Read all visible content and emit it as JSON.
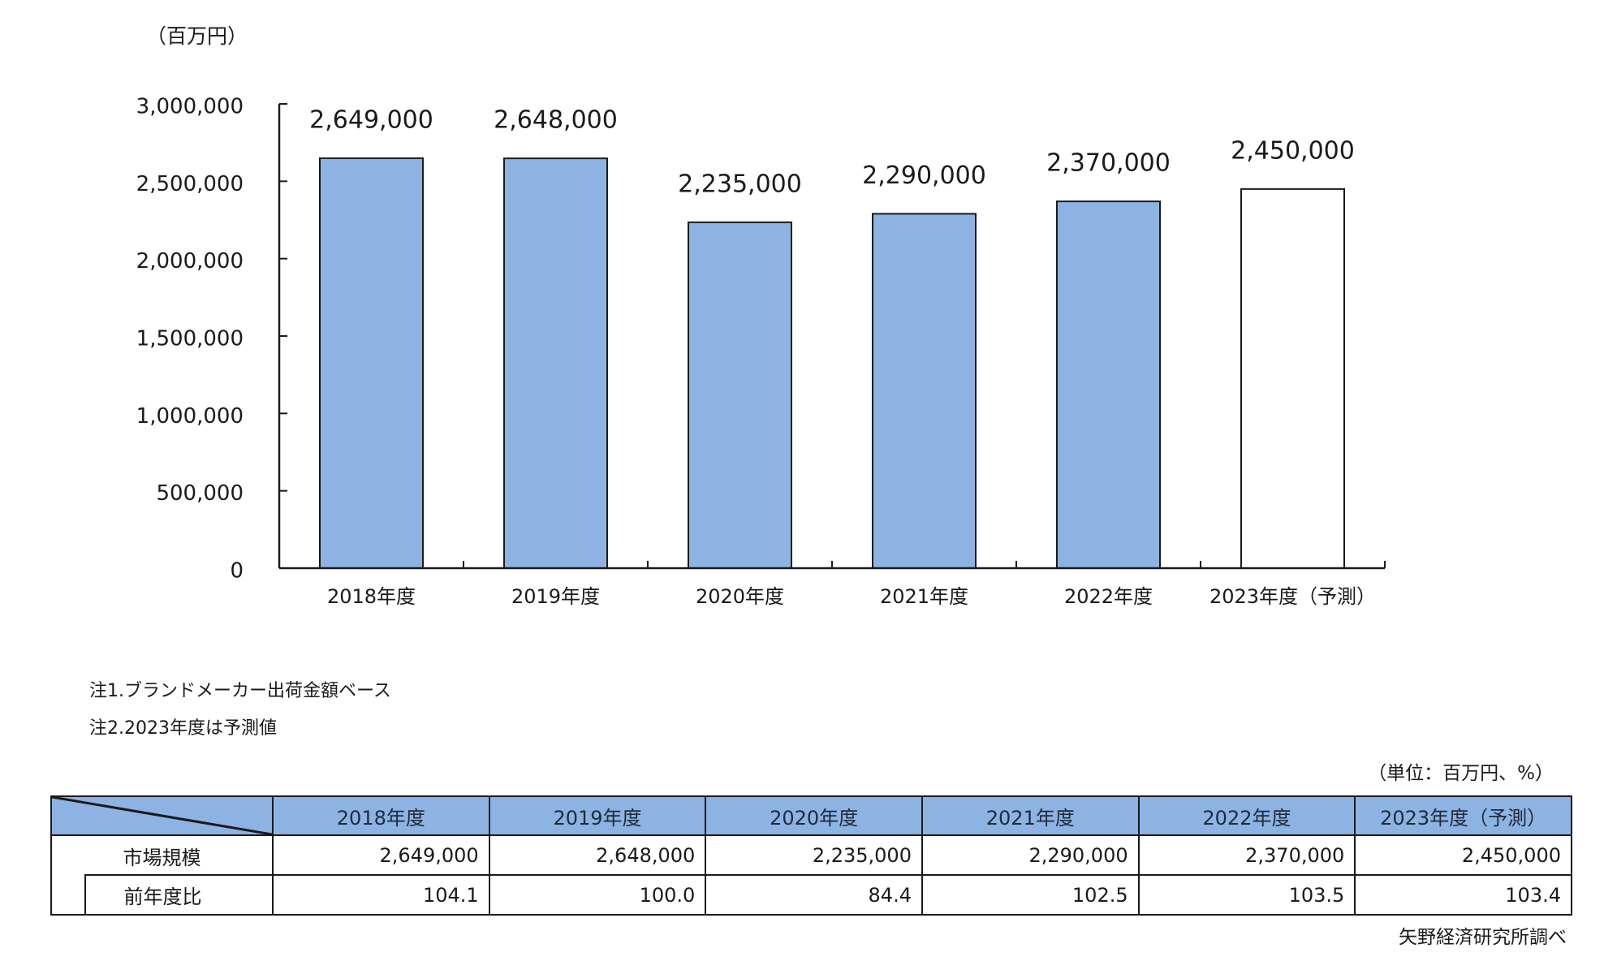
{
  "chart_data": {
    "type": "bar",
    "title": "",
    "unit_label": "（百万円）",
    "xlabel": "",
    "ylabel": "（百万円）",
    "ylim": [
      0,
      3000000
    ],
    "y_ticks": [
      0,
      500000,
      1000000,
      1500000,
      2000000,
      2500000,
      3000000
    ],
    "y_tick_labels": [
      "0",
      "500,000",
      "1,000,000",
      "1,500,000",
      "2,000,000",
      "2,500,000",
      "3,000,000"
    ],
    "categories": [
      "2018年度",
      "2019年度",
      "2020年度",
      "2021年度",
      "2022年度",
      "2023年度（予測）"
    ],
    "values": [
      2649000,
      2648000,
      2235000,
      2290000,
      2370000,
      2450000
    ],
    "value_labels": [
      "2,649,000",
      "2,648,000",
      "2,235,000",
      "2,290,000",
      "2,370,000",
      "2,450,000"
    ],
    "bar_fills": [
      "#8db3e2",
      "#8db3e2",
      "#8db3e2",
      "#8db3e2",
      "#8db3e2",
      "#ffffff"
    ],
    "grid": false,
    "legend": null
  },
  "notes": [
    "注1.ブランドメーカー出荷金額ベース",
    "注2.2023年度は予測値"
  ],
  "table": {
    "unit": "（単位：百万円、%）",
    "headers": [
      "2018年度",
      "2019年度",
      "2020年度",
      "2021年度",
      "2022年度",
      "2023年度（予測）"
    ],
    "rows": [
      {
        "label": "市場規模",
        "values": [
          "2,649,000",
          "2,648,000",
          "2,235,000",
          "2,290,000",
          "2,370,000",
          "2,450,000"
        ]
      },
      {
        "label": "前年度比",
        "values": [
          "104.1",
          "100.0",
          "84.4",
          "102.5",
          "103.5",
          "103.4"
        ]
      }
    ],
    "header_color": "#8db3e2"
  },
  "source": "矢野経済研究所調べ",
  "colors": {
    "bar": "#8db3e2",
    "forecast_bar": "#ffffff",
    "axis": "#1a1a1a"
  }
}
